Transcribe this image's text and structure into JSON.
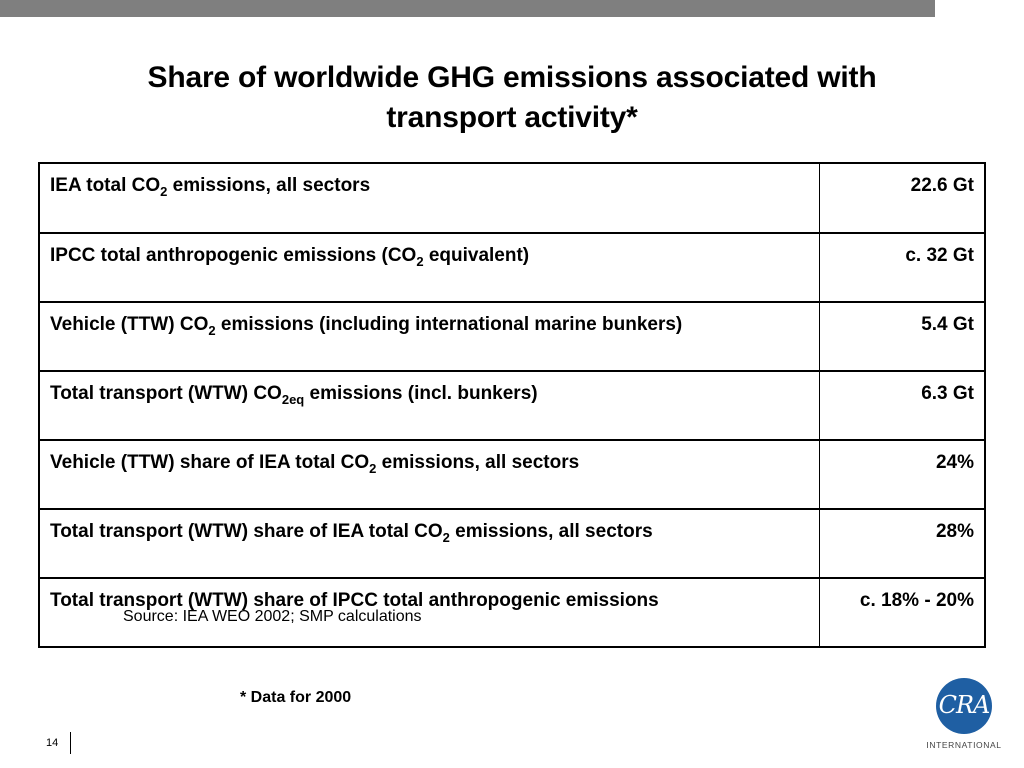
{
  "slide": {
    "title_line1": "Share of worldwide GHG emissions associated with",
    "title_line2": "transport activity*"
  },
  "table": {
    "rows": [
      {
        "label_before": "IEA total CO",
        "label_sub": "2",
        "label_after": " emissions, all sectors",
        "value": "22.6 Gt"
      },
      {
        "label_before": "IPCC total anthropogenic emissions (CO",
        "label_sub": "2",
        "label_after": " equivalent)",
        "value": "c. 32 Gt"
      },
      {
        "label_before": "Vehicle (TTW) CO",
        "label_sub": "2",
        "label_after": " emissions (including international marine bunkers)",
        "value": "5.4 Gt"
      },
      {
        "label_before": "Total transport (WTW) CO",
        "label_sub": "2eq",
        "label_after": " emissions (incl. bunkers)",
        "value": "6.3 Gt"
      },
      {
        "label_before": "Vehicle (TTW) share of IEA total CO",
        "label_sub": "2",
        "label_after": " emissions, all sectors",
        "value": "24%"
      },
      {
        "label_before": "Total transport (WTW) share of IEA total CO",
        "label_sub": "2",
        "label_after": " emissions, all sectors",
        "value": "28%"
      },
      {
        "label_before": "Total transport (WTW) share of IPCC total anthropogenic emissions",
        "label_sub": "",
        "label_after": "",
        "value": "c. 18% - 20%"
      }
    ],
    "source_note": "Source: IEA WEO 2002; SMP calculations"
  },
  "footnote": "* Data for 2000",
  "page_number": "14",
  "logo": {
    "mark": "CRA",
    "subtitle": "INTERNATIONAL",
    "color": "#1f5fa3"
  },
  "colors": {
    "top_bar": "#7f7f7f"
  }
}
